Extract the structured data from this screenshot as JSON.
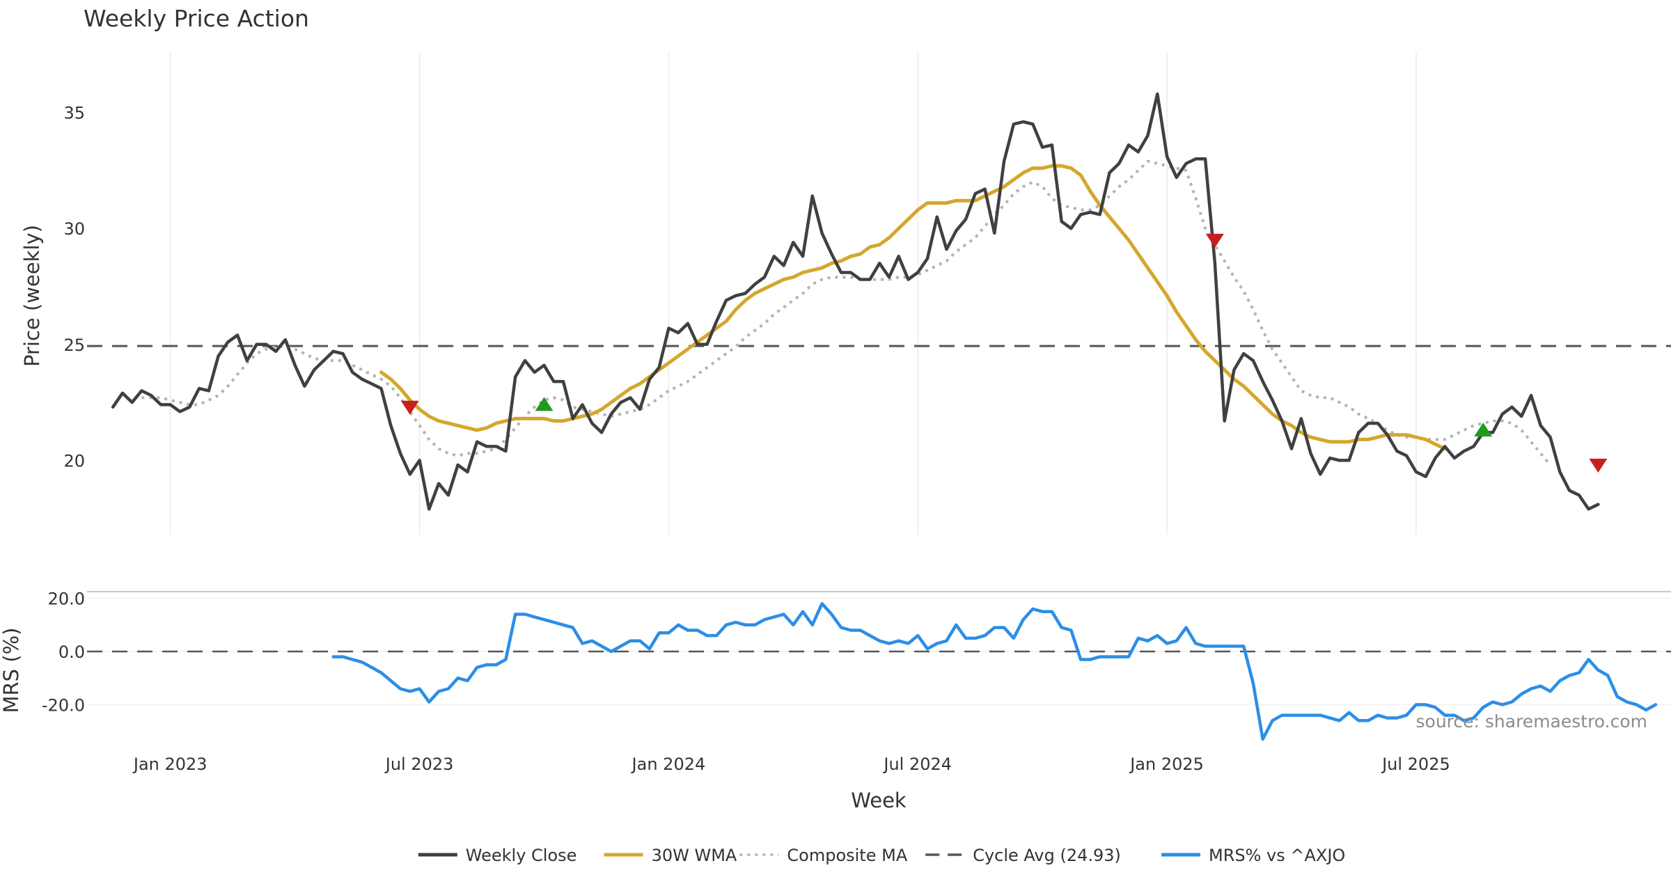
{
  "chart_data": [
    {
      "type": "line",
      "title": "Weekly Price Action",
      "xlabel": "Week",
      "ylabel": "Price (weekly)",
      "ylim": [
        16.8,
        37.6
      ],
      "y_ticks": [
        20,
        25,
        30,
        35
      ],
      "x_ticks": [
        {
          "label": "Jan 2023",
          "week": 6
        },
        {
          "label": "Jul 2023",
          "week": 32
        },
        {
          "label": "Jan 2024",
          "week": 58
        },
        {
          "label": "Jul 2024",
          "week": 84
        },
        {
          "label": "Jan 2025",
          "week": 110
        },
        {
          "label": "Jul 2025",
          "week": 136
        }
      ],
      "xlim": [
        -2.7,
        162.6
      ],
      "series": [
        {
          "name": "Weekly Close",
          "color": "#404040",
          "style": "solid",
          "x_start": 0,
          "values": [
            22.3,
            22.9,
            22.5,
            23.0,
            22.8,
            22.4,
            22.4,
            22.1,
            22.3,
            23.1,
            23.0,
            24.5,
            25.1,
            25.4,
            24.3,
            25.0,
            25.0,
            24.7,
            25.2,
            24.1,
            23.2,
            23.9,
            24.3,
            24.7,
            24.6,
            23.8,
            23.5,
            23.3,
            23.1,
            21.5,
            20.3,
            19.4,
            20.0,
            17.9,
            19.0,
            18.5,
            19.8,
            19.5,
            20.8,
            20.6,
            20.6,
            20.4,
            23.6,
            24.3,
            23.8,
            24.1,
            23.4,
            23.4,
            21.8,
            22.4,
            21.6,
            21.2,
            22.0,
            22.5,
            22.7,
            22.2,
            23.5,
            24.0,
            25.7,
            25.5,
            25.9,
            25.0,
            25.0,
            26.0,
            26.9,
            27.1,
            27.2,
            27.6,
            27.9,
            28.8,
            28.4,
            29.4,
            28.8,
            31.4,
            29.8,
            28.9,
            28.1,
            28.1,
            27.8,
            27.8,
            28.5,
            27.9,
            28.8,
            27.8,
            28.1,
            28.7,
            30.5,
            29.1,
            29.9,
            30.4,
            31.5,
            31.7,
            29.8,
            32.9,
            34.5,
            34.6,
            34.5,
            33.5,
            33.6,
            30.3,
            30.0,
            30.6,
            30.7,
            30.6,
            32.4,
            32.8,
            33.6,
            33.3,
            34.0,
            35.8,
            33.1,
            32.2,
            32.8,
            33.0,
            33.0,
            28.5,
            21.7,
            23.9,
            24.6,
            24.3,
            23.4,
            22.6,
            21.7,
            20.5,
            21.8,
            20.3,
            19.4,
            20.1,
            20.0,
            20.0,
            21.2,
            21.6,
            21.6,
            21.1,
            20.4,
            20.2,
            19.5,
            19.3,
            20.1,
            20.6,
            20.1,
            20.4,
            20.6,
            21.2,
            21.2,
            22.0,
            22.3,
            21.9,
            22.8,
            21.5,
            21.0,
            19.5,
            18.7,
            18.5,
            17.9,
            18.1
          ]
        },
        {
          "name": "30W WMA",
          "color": "#d4a72c",
          "style": "solid",
          "x_start": 28,
          "values": [
            23.8,
            23.5,
            23.1,
            22.6,
            22.2,
            21.9,
            21.7,
            21.6,
            21.5,
            21.4,
            21.3,
            21.4,
            21.6,
            21.7,
            21.8,
            21.8,
            21.8,
            21.8,
            21.7,
            21.7,
            21.8,
            21.9,
            22.0,
            22.2,
            22.5,
            22.8,
            23.1,
            23.3,
            23.6,
            23.9,
            24.2,
            24.5,
            24.8,
            25.1,
            25.4,
            25.7,
            26.0,
            26.5,
            26.9,
            27.2,
            27.4,
            27.6,
            27.8,
            27.9,
            28.1,
            28.2,
            28.3,
            28.5,
            28.6,
            28.8,
            28.9,
            29.2,
            29.3,
            29.6,
            30.0,
            30.4,
            30.8,
            31.1,
            31.1,
            31.1,
            31.2,
            31.2,
            31.2,
            31.4,
            31.6,
            31.8,
            32.1,
            32.4,
            32.6,
            32.6,
            32.7,
            32.7,
            32.6,
            32.3,
            31.6,
            31.0,
            30.5,
            30.0,
            29.5,
            28.9,
            28.3,
            27.7,
            27.1,
            26.4,
            25.8,
            25.2,
            24.7,
            24.3,
            23.9,
            23.5,
            23.2,
            22.8,
            22.4,
            22.0,
            21.7,
            21.5,
            21.2,
            21.0,
            20.9,
            20.8,
            20.8,
            20.8,
            20.9,
            20.9,
            21.0,
            21.1,
            21.1,
            21.1,
            21.0,
            20.9,
            20.7,
            20.5
          ]
        },
        {
          "name": "Composite MA",
          "color": "#b3b3b3",
          "style": "dotted",
          "x_start": 3,
          "values": [
            22.7,
            22.7,
            22.7,
            22.6,
            22.5,
            22.4,
            22.4,
            22.6,
            22.8,
            23.2,
            23.7,
            24.2,
            24.6,
            24.8,
            24.9,
            24.9,
            24.8,
            24.6,
            24.4,
            24.3,
            24.3,
            24.3,
            24.1,
            23.9,
            23.7,
            23.5,
            23.2,
            22.7,
            22.1,
            21.5,
            20.9,
            20.5,
            20.3,
            20.2,
            20.3,
            20.3,
            20.4,
            20.5,
            20.9,
            21.4,
            21.9,
            22.3,
            22.6,
            22.7,
            22.6,
            22.3,
            22.2,
            22.1,
            22.0,
            21.9,
            22.0,
            22.1,
            22.2,
            22.4,
            22.7,
            23.0,
            23.2,
            23.4,
            23.7,
            24.0,
            24.3,
            24.6,
            24.9,
            25.3,
            25.6,
            25.9,
            26.3,
            26.6,
            26.9,
            27.2,
            27.6,
            27.8,
            27.9,
            27.9,
            27.9,
            27.8,
            27.8,
            27.8,
            27.8,
            27.9,
            27.9,
            28.0,
            28.2,
            28.4,
            28.6,
            29.0,
            29.3,
            29.6,
            30.1,
            30.6,
            31.0,
            31.5,
            31.8,
            32.0,
            31.8,
            31.3,
            31.0,
            30.9,
            30.8,
            30.8,
            31.0,
            31.4,
            31.8,
            32.1,
            32.5,
            32.9,
            32.8,
            32.7,
            32.6,
            32.5,
            31.3,
            30.0,
            29.3,
            28.6,
            27.9,
            27.3,
            26.5,
            25.6,
            24.8,
            24.2,
            23.6,
            23.0,
            22.8,
            22.7,
            22.7,
            22.5,
            22.3,
            22.0,
            21.8,
            21.6,
            21.3,
            21.1,
            21.0,
            21.0,
            20.9,
            20.9,
            20.9,
            21.1,
            21.3,
            21.5,
            21.6,
            21.7,
            21.7,
            21.6,
            21.3,
            20.8,
            20.3,
            19.8
          ]
        },
        {
          "name": "Cycle Avg (24.93)",
          "color": "#555555",
          "style": "dashed",
          "constant": 24.93
        }
      ],
      "signals": [
        {
          "type": "sell",
          "week": 31,
          "value": 22.3,
          "color": "#c81e1e"
        },
        {
          "type": "buy",
          "week": 45,
          "value": 22.4,
          "color": "#1e9a1e"
        },
        {
          "type": "sell",
          "week": 115,
          "value": 29.5,
          "color": "#c81e1e"
        },
        {
          "type": "buy",
          "week": 143,
          "value": 21.3,
          "color": "#1e9a1e"
        },
        {
          "type": "sell",
          "week": 155,
          "value": 19.8,
          "color": "#c81e1e"
        }
      ]
    },
    {
      "type": "line",
      "title": "",
      "xlabel": "Week",
      "ylabel": "MRS (%)",
      "ylim": [
        -33,
        22
      ],
      "y_ticks": [
        20.0,
        0.0,
        -20.0
      ],
      "y_tick_labels": [
        "20.0",
        "0.0",
        "-20.0"
      ],
      "zero_line": 0,
      "annotation": "source: sharemaestro.com",
      "series": [
        {
          "name": "MRS% vs ^AXJO",
          "color": "#2b8ee6",
          "style": "solid",
          "x_start": 23,
          "values": [
            -2,
            -2,
            -3,
            -4,
            -6,
            -8,
            -11,
            -14,
            -15,
            -14,
            -19,
            -15,
            -14,
            -10,
            -11,
            -6,
            -5,
            -5,
            -3,
            14,
            14,
            13,
            12,
            11,
            10,
            9,
            3,
            4,
            2,
            0,
            2,
            4,
            4,
            1,
            7,
            7,
            10,
            8,
            8,
            6,
            6,
            10,
            11,
            10,
            10,
            12,
            13,
            14,
            10,
            15,
            10,
            18,
            14,
            9,
            8,
            8,
            6,
            4,
            3,
            4,
            3,
            6,
            1,
            3,
            4,
            10,
            5,
            5,
            6,
            9,
            9,
            5,
            12,
            16,
            15,
            15,
            9,
            8,
            -3,
            -3,
            -2,
            -2,
            -2,
            -2,
            5,
            4,
            6,
            3,
            4,
            9,
            3,
            2,
            2,
            2,
            2,
            2,
            -12,
            -33,
            -26,
            -24,
            -24,
            -24,
            -24,
            -24,
            -25,
            -26,
            -23,
            -26,
            -26,
            -24,
            -25,
            -25,
            -24,
            -20,
            -20,
            -21,
            -24,
            -24,
            -26,
            -25,
            -21,
            -19,
            -20,
            -19,
            -16,
            -14,
            -13,
            -15,
            -11,
            -9,
            -8,
            -3,
            -7,
            -9,
            -17,
            -19,
            -20,
            -22,
            -20
          ]
        }
      ]
    }
  ],
  "legend": {
    "placement": "bottom-center",
    "items": [
      {
        "label": "Weekly Close",
        "color": "#404040",
        "style": "solid"
      },
      {
        "label": "30W WMA",
        "color": "#d4a72c",
        "style": "solid"
      },
      {
        "label": "Composite MA",
        "color": "#b3b3b3",
        "style": "dotted"
      },
      {
        "label": "Cycle Avg (24.93)",
        "color": "#555555",
        "style": "dashed"
      },
      {
        "label": "MRS% vs ^AXJO",
        "color": "#2b8ee6",
        "style": "solid"
      }
    ]
  }
}
